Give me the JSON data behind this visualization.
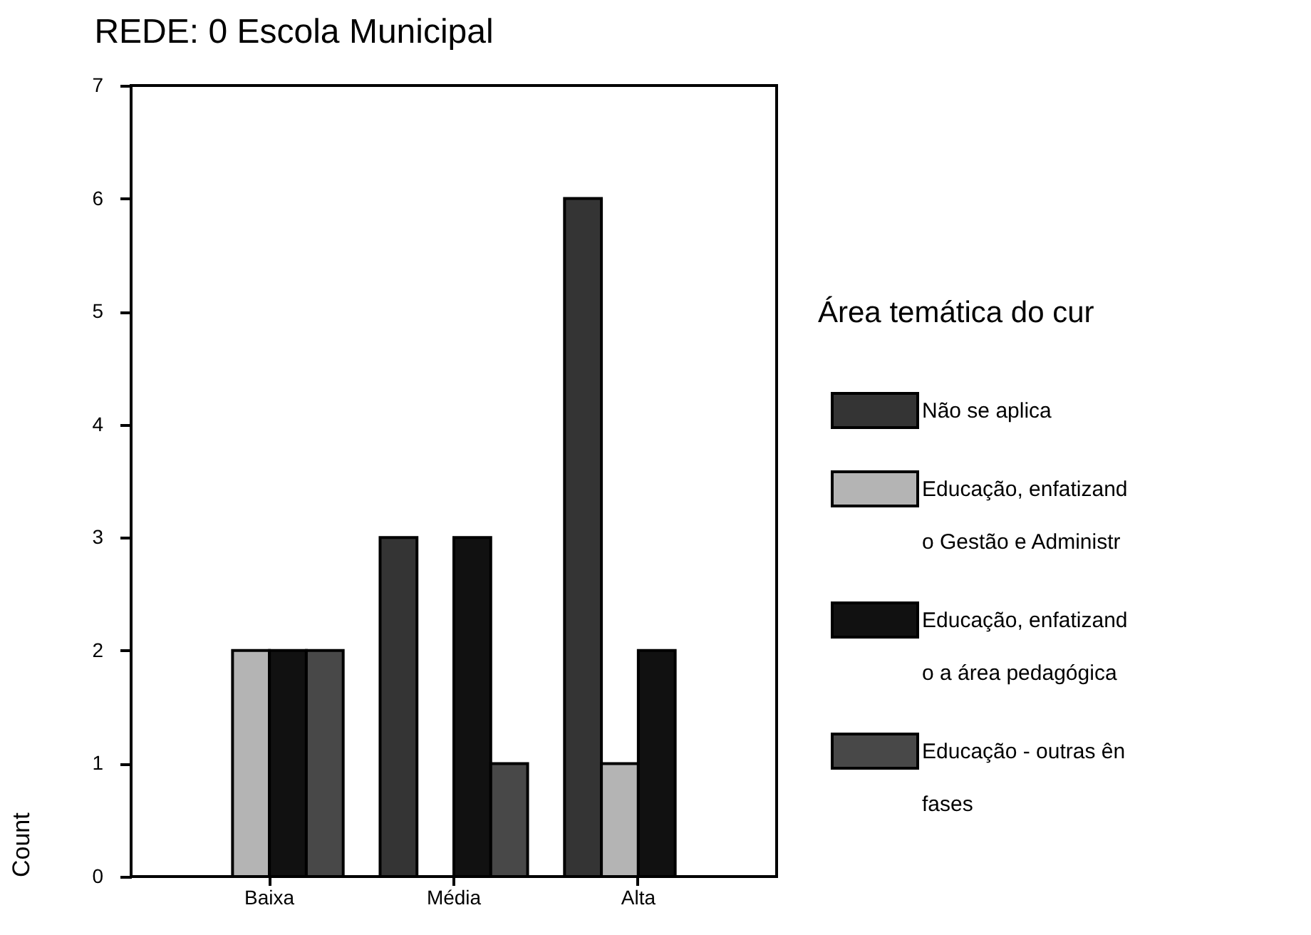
{
  "chart_data": {
    "type": "bar",
    "title": "REDE:  0   Escola Municipal",
    "ylabel": "Count",
    "legend_title": "Área temática do cur",
    "legend": "right",
    "categories": [
      "Baixa",
      "Média",
      "Alta"
    ],
    "series": [
      {
        "name": "Não se aplica",
        "color": "#343434",
        "values": [
          0,
          3,
          6
        ]
      },
      {
        "name": "Educação, enfatizando Gestão e Administr",
        "color": "#b4b4b4",
        "values": [
          2,
          0,
          1
        ]
      },
      {
        "name": "Educação, enfatizando a área pedagógica",
        "color": "#111111",
        "values": [
          2,
          3,
          2
        ]
      },
      {
        "name": "Educação - outras ênfases",
        "color": "#484848",
        "values": [
          2,
          1,
          0
        ]
      }
    ],
    "ylim": [
      0,
      7
    ],
    "yticks": [
      0,
      1,
      2,
      3,
      4,
      5,
      6,
      7
    ],
    "grid": false
  }
}
